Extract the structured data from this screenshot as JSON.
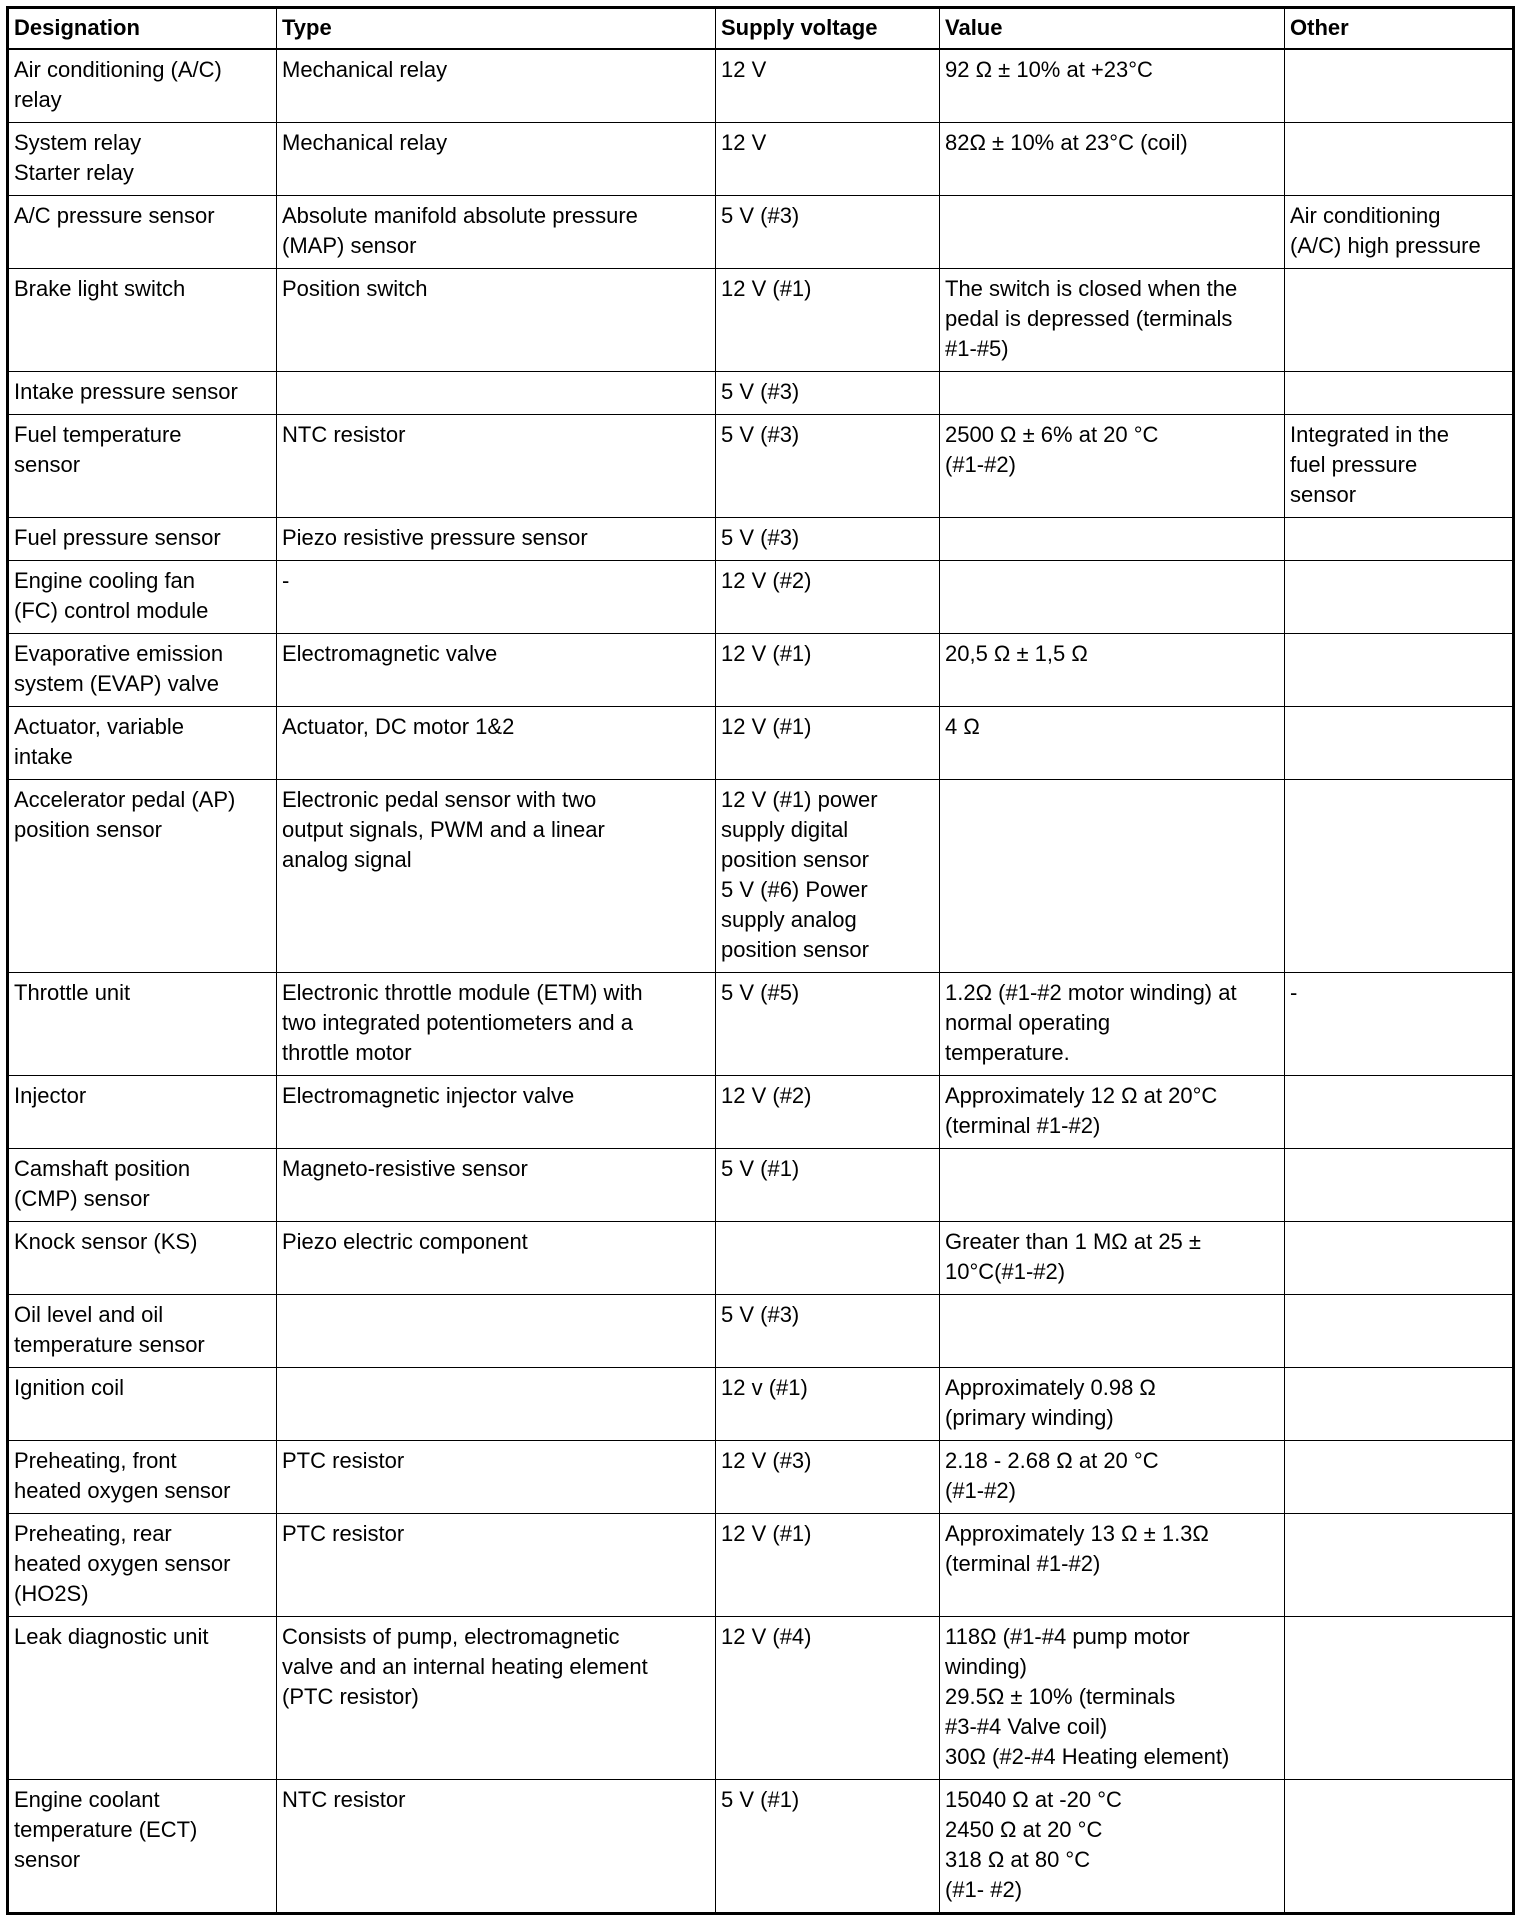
{
  "table": {
    "headers": [
      "Designation",
      "Type",
      "Supply voltage",
      "Value",
      "Other"
    ],
    "rows": [
      [
        "Air conditioning (A/C)\nrelay",
        "Mechanical relay",
        "12 V",
        "92 Ω ± 10% at +23°C",
        ""
      ],
      [
        "System relay\nStarter relay",
        "Mechanical relay",
        "12 V",
        "82Ω ± 10% at 23°C (coil)",
        ""
      ],
      [
        "A/C pressure sensor",
        "Absolute manifold absolute pressure\n(MAP) sensor",
        "5 V (#3)",
        "",
        "Air conditioning\n(A/C) high pressure"
      ],
      [
        "Brake light switch",
        "Position switch",
        "12 V (#1)",
        "The switch is closed when the\npedal is depressed (terminals\n#1-#5)",
        ""
      ],
      [
        "Intake pressure sensor",
        "",
        "5 V (#3)",
        "",
        ""
      ],
      [
        "Fuel temperature\nsensor",
        "NTC resistor",
        "5 V (#3)",
        "2500 Ω ± 6% at 20 °C\n(#1-#2)",
        "Integrated in the\nfuel pressure\nsensor"
      ],
      [
        "Fuel pressure sensor",
        "Piezo resistive pressure sensor",
        "5 V (#3)",
        "",
        ""
      ],
      [
        "Engine cooling fan\n(FC) control module",
        "-",
        "12 V (#2)",
        "",
        ""
      ],
      [
        "Evaporative emission\nsystem (EVAP) valve",
        "Electromagnetic valve",
        "12 V (#1)",
        "20,5 Ω ± 1,5 Ω",
        ""
      ],
      [
        "Actuator, variable\nintake",
        "Actuator, DC motor 1&2",
        "12 V (#1)",
        "4 Ω",
        ""
      ],
      [
        "Accelerator pedal (AP)\nposition sensor",
        "Electronic pedal sensor with two\noutput signals, PWM and a linear\nanalog signal",
        "12 V (#1) power\nsupply digital\nposition sensor\n5 V (#6) Power\nsupply analog\nposition sensor",
        "",
        ""
      ],
      [
        "Throttle unit",
        "Electronic throttle module (ETM) with\ntwo integrated potentiometers and a\nthrottle motor",
        "5 V (#5)",
        "1.2Ω (#1-#2 motor winding) at\nnormal operating\ntemperature.",
        "-"
      ],
      [
        "Injector",
        "Electromagnetic injector valve",
        "12 V (#2)",
        "Approximately 12 Ω at 20°C\n(terminal #1-#2)",
        ""
      ],
      [
        "Camshaft position\n(CMP) sensor",
        "Magneto-resistive sensor",
        "5 V (#1)",
        "",
        ""
      ],
      [
        "Knock sensor (KS)",
        "Piezo electric component",
        "",
        "Greater than 1 MΩ at 25 ±\n10°C(#1-#2)",
        ""
      ],
      [
        "Oil level and oil\ntemperature sensor",
        "",
        "5 V (#3)",
        "",
        ""
      ],
      [
        "Ignition coil",
        "",
        "12 v (#1)",
        "Approximately 0.98 Ω\n(primary winding)",
        ""
      ],
      [
        "Preheating, front\nheated oxygen sensor",
        "PTC resistor",
        "12 V (#3)",
        "2.18 - 2.68 Ω at 20 °C\n(#1-#2)",
        ""
      ],
      [
        "Preheating, rear\nheated oxygen sensor\n(HO2S)",
        "PTC resistor",
        "12 V (#1)",
        "Approximately 13 Ω ± 1.3Ω\n(terminal #1-#2)",
        ""
      ],
      [
        "Leak diagnostic unit",
        "Consists of pump, electromagnetic\nvalve and an internal heating element\n(PTC resistor)",
        "12 V (#4)",
        "118Ω (#1-#4 pump motor\nwinding)\n29.5Ω ± 10% (terminals\n#3-#4 Valve coil)\n30Ω (#2-#4 Heating element)",
        ""
      ],
      [
        "Engine coolant\ntemperature (ECT)\nsensor",
        "NTC resistor",
        "5 V (#1)",
        "15040 Ω at -20 °C\n2450 Ω at 20 °C\n318 Ω at 80 °C\n(#1- #2)",
        ""
      ]
    ]
  }
}
